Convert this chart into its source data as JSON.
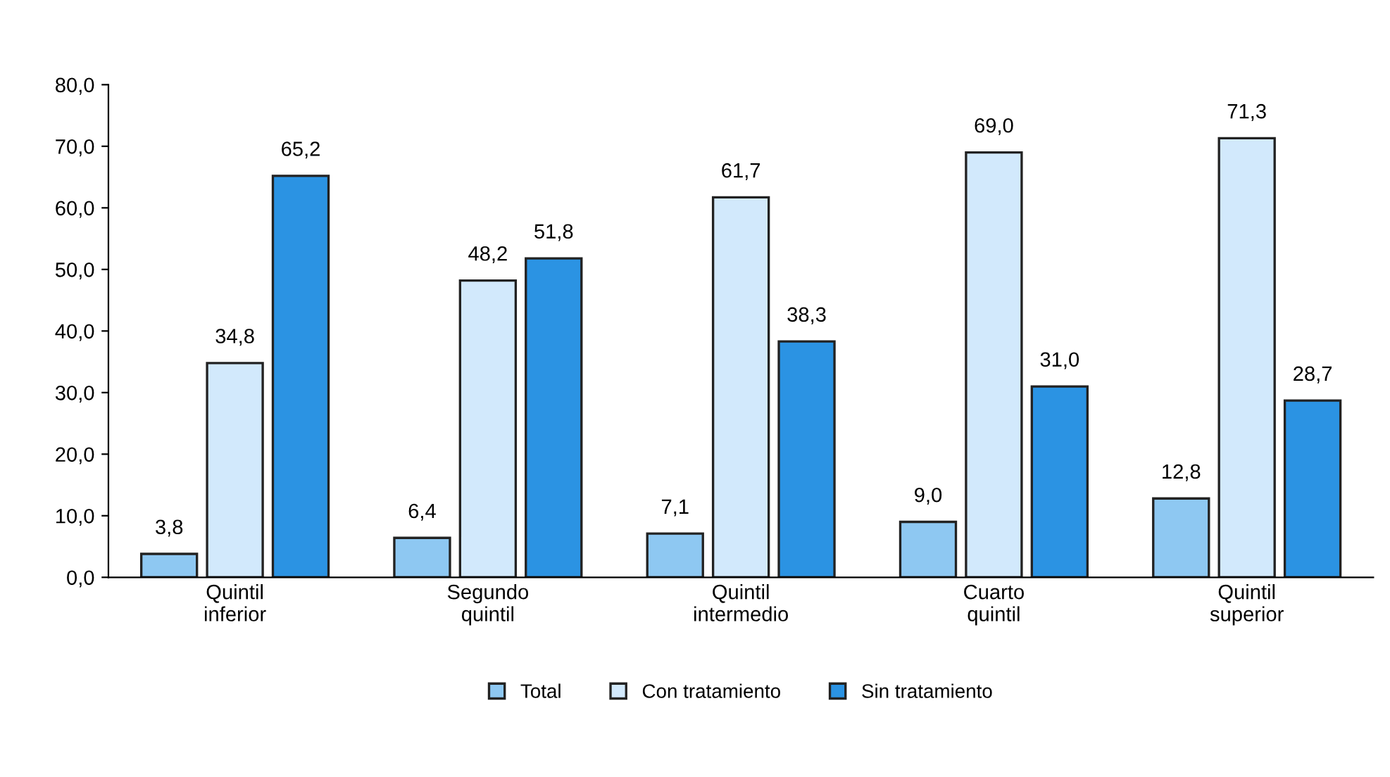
{
  "chart_data": {
    "type": "bar",
    "categories": [
      "Quintil\ninferior",
      "Segundo\nquintil",
      "Quintil\nintermedio",
      "Cuarto\nquintil",
      "Quintil\nsuperior"
    ],
    "series": [
      {
        "name": "Total",
        "color": "#8ec8f2",
        "values": [
          3.8,
          6.4,
          7.1,
          9.0,
          12.8
        ],
        "value_labels": [
          "3,8",
          "6,4",
          "7,1",
          "9,0",
          "12,8"
        ]
      },
      {
        "name": "Con tratamiento",
        "color": "#d2e9fc",
        "values": [
          34.8,
          48.2,
          61.7,
          69.0,
          71.3
        ],
        "value_labels": [
          "34,8",
          "48,2",
          "61,7",
          "69,0",
          "71,3"
        ]
      },
      {
        "name": "Sin tratamiento",
        "color": "#2b93e3",
        "values": [
          65.2,
          51.8,
          38.3,
          31.0,
          28.7
        ],
        "value_labels": [
          "65,2",
          "51,8",
          "38,3",
          "31,0",
          "28,7"
        ]
      }
    ],
    "ylim": [
      0,
      80
    ],
    "yticks": [
      {
        "value": 0,
        "label": "0,0"
      },
      {
        "value": 10,
        "label": "10,0"
      },
      {
        "value": 20,
        "label": "20,0"
      },
      {
        "value": 30,
        "label": "30,0"
      },
      {
        "value": 40,
        "label": "40,0"
      },
      {
        "value": 50,
        "label": "50,0"
      },
      {
        "value": 60,
        "label": "60,0"
      },
      {
        "value": 70,
        "label": "70,0"
      },
      {
        "value": 80,
        "label": "80,0"
      }
    ],
    "grid": false,
    "legend": "bottom"
  }
}
